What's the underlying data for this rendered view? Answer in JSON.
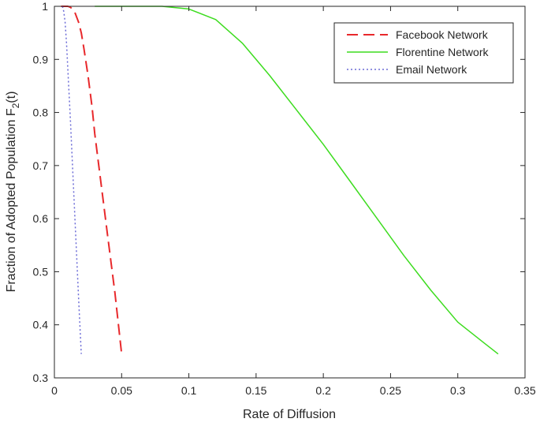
{
  "chart_data": {
    "type": "line",
    "title": "",
    "xlabel": "Rate of Diffusion",
    "ylabel": {
      "prefix": "Fraction of Adopted Population F",
      "subscript": "2",
      "suffix": "(t)"
    },
    "xlim": [
      0,
      0.35
    ],
    "ylim": [
      0.3,
      1
    ],
    "xticks": [
      0,
      0.05,
      0.1,
      0.15,
      0.2,
      0.25,
      0.3,
      0.35
    ],
    "xtick_labels": [
      "0",
      "0.05",
      "0.1",
      "0.15",
      "0.2",
      "0.25",
      "0.3",
      "0.35"
    ],
    "yticks": [
      0.3,
      0.4,
      0.5,
      0.6,
      0.7,
      0.8,
      0.9,
      1
    ],
    "ytick_labels": [
      "0.3",
      "0.4",
      "0.5",
      "0.6",
      "0.7",
      "0.8",
      "0.9",
      "1"
    ],
    "grid": false,
    "legend_position": "top-right",
    "series": [
      {
        "name": "Facebook Network",
        "color": "#e8282b",
        "dash": "dashed",
        "x": [
          0.005,
          0.008,
          0.01,
          0.012,
          0.015,
          0.018,
          0.02,
          0.022,
          0.025,
          0.028,
          0.03,
          0.035,
          0.04,
          0.045,
          0.05
        ],
        "y": [
          1.0,
          1.0,
          1.0,
          0.998,
          0.99,
          0.97,
          0.95,
          0.92,
          0.87,
          0.81,
          0.76,
          0.66,
          0.56,
          0.46,
          0.345
        ]
      },
      {
        "name": "Florentine Network",
        "color": "#3ddc1f",
        "dash": "solid",
        "x": [
          0.03,
          0.05,
          0.08,
          0.1,
          0.12,
          0.14,
          0.16,
          0.18,
          0.2,
          0.22,
          0.24,
          0.26,
          0.28,
          0.3,
          0.32,
          0.33
        ],
        "y": [
          1.0,
          1.0,
          1.0,
          0.995,
          0.975,
          0.93,
          0.87,
          0.805,
          0.74,
          0.67,
          0.6,
          0.53,
          0.465,
          0.405,
          0.365,
          0.345
        ]
      },
      {
        "name": "Email Network",
        "color": "#6b6bd6",
        "dash": "dotted",
        "x": [
          0.006,
          0.007,
          0.008,
          0.009,
          0.01,
          0.012,
          0.014,
          0.016,
          0.018,
          0.02
        ],
        "y": [
          1.0,
          0.99,
          0.97,
          0.93,
          0.88,
          0.78,
          0.67,
          0.56,
          0.45,
          0.345
        ]
      }
    ]
  }
}
